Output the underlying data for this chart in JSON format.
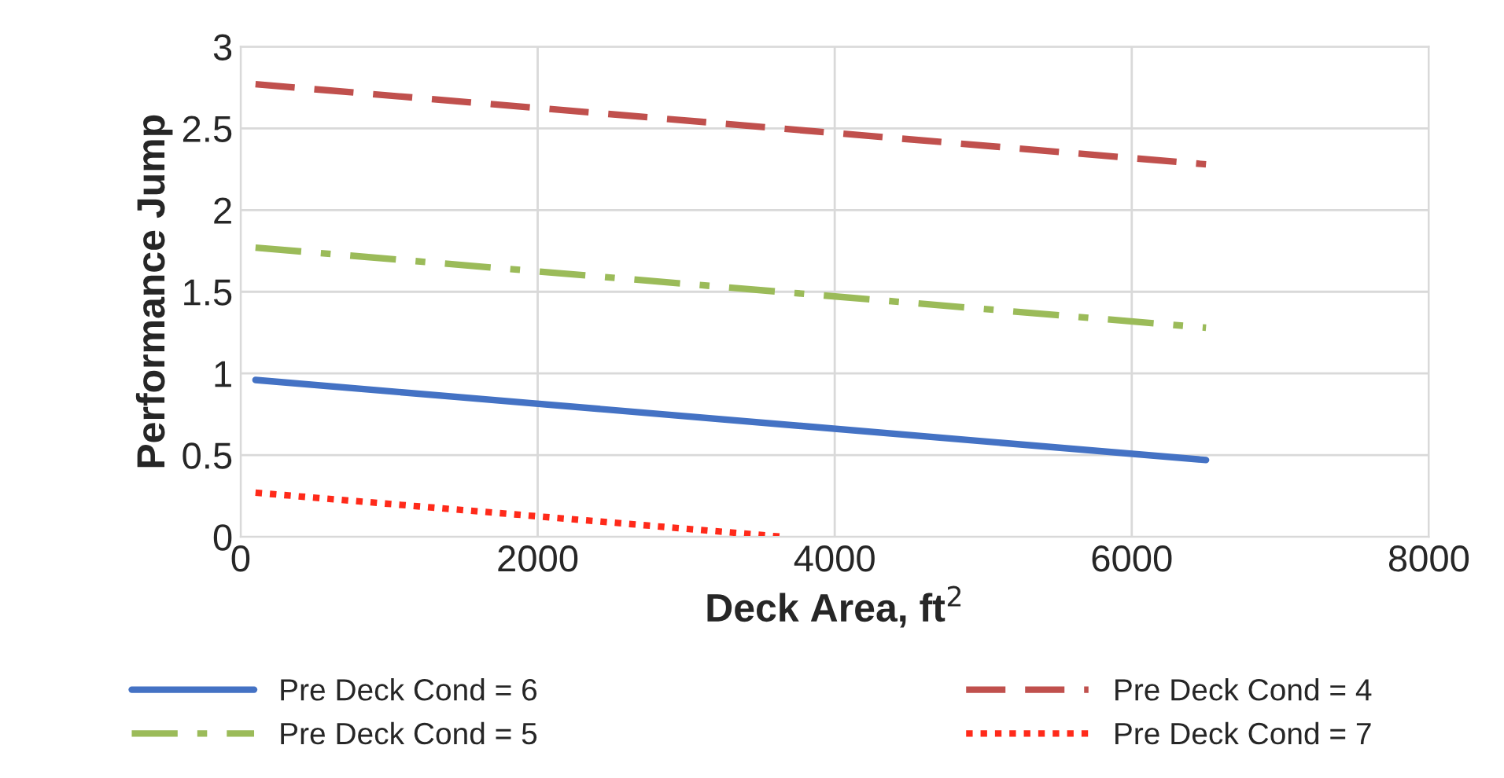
{
  "chart_data": {
    "type": "line",
    "xlabel": "Deck Area, ft$^{2}$",
    "ylabel": "Performance Jump",
    "xlim": [
      0,
      8000
    ],
    "xticks": [
      0,
      2000,
      4000,
      6000,
      8000
    ],
    "ylim": [
      0,
      3
    ],
    "yticks": [
      0,
      0.5,
      1,
      1.5,
      2,
      2.5,
      3
    ],
    "grid": true,
    "legend": "bottom",
    "series": [
      {
        "name": "Pre Deck Cond = 6",
        "color": "#4472c4",
        "line_style": "solid",
        "x": [
          100,
          6500
        ],
        "values": [
          0.96,
          0.47
        ]
      },
      {
        "name": "Pre Deck Cond = 4",
        "color": "#c0504d",
        "line_style": "dashed",
        "x": [
          100,
          6500
        ],
        "values": [
          2.77,
          2.28
        ]
      },
      {
        "name": "Pre Deck Cond = 5",
        "color": "#9bbb59",
        "line_style": "dashdot",
        "x": [
          100,
          6500
        ],
        "values": [
          1.77,
          1.28
        ]
      },
      {
        "name": "Pre Deck Cond = 7",
        "color": "#ff2a1a",
        "line_style": "dotted",
        "x": [
          100,
          3650
        ],
        "values": [
          0.27,
          0.0
        ]
      }
    ]
  }
}
